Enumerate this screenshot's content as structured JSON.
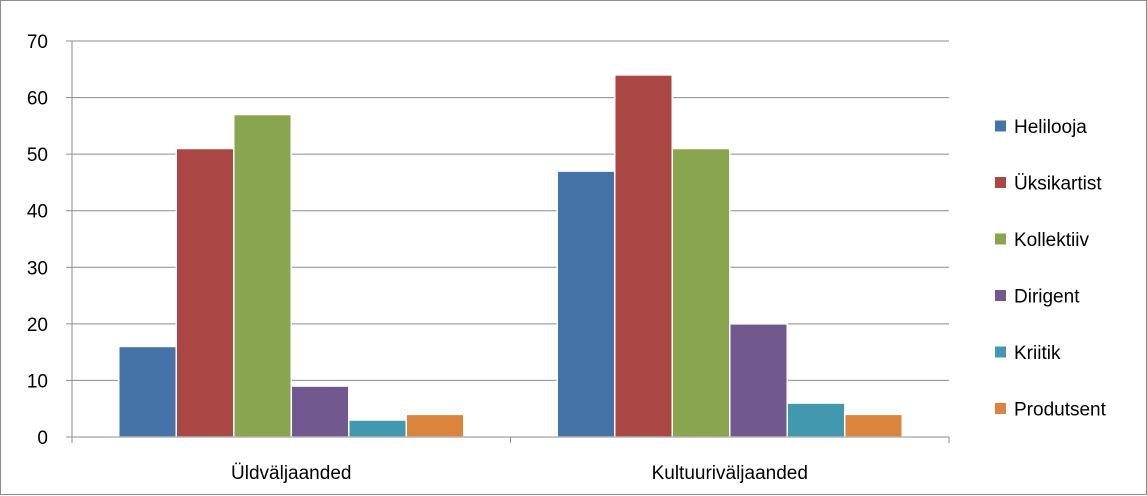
{
  "chart_data": {
    "type": "bar",
    "title": "",
    "xlabel": "",
    "ylabel": "",
    "categories": [
      "Üldväljaanded",
      "Kultuuriväljaanded"
    ],
    "series": [
      {
        "name": "Helilooja",
        "color": "#4572A7",
        "values": [
          16,
          47
        ]
      },
      {
        "name": "Üksikartist",
        "color": "#AA4643",
        "values": [
          51,
          64
        ]
      },
      {
        "name": "Kollektiiv",
        "color": "#89A54E",
        "values": [
          57,
          51
        ]
      },
      {
        "name": "Dirigent",
        "color": "#71588F",
        "values": [
          9,
          20
        ]
      },
      {
        "name": "Kriitik",
        "color": "#4198AF",
        "values": [
          3,
          6
        ]
      },
      {
        "name": "Produtsent",
        "color": "#DB843D",
        "values": [
          4,
          4
        ]
      }
    ],
    "ylim": [
      0,
      70
    ],
    "yticks": [
      0,
      10,
      20,
      30,
      40,
      50,
      60,
      70
    ],
    "grid": true,
    "legend": "right"
  }
}
